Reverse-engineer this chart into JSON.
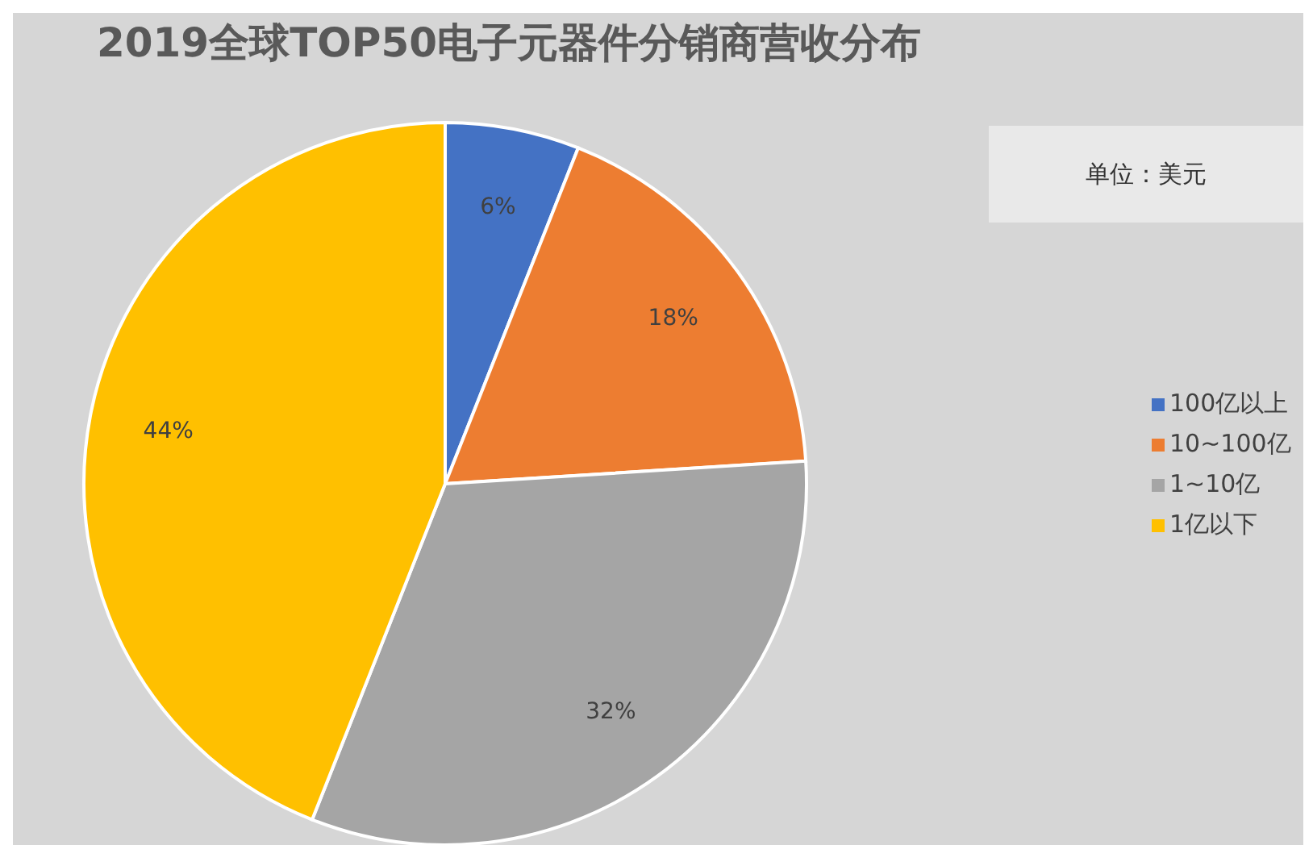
{
  "chart_data": {
    "type": "pie",
    "title": "2019全球TOP50电子元器件分销商营收分布",
    "categories": [
      "100亿以上",
      "10~100亿",
      "1~10亿",
      "1亿以下"
    ],
    "values": [
      6,
      18,
      32,
      44
    ],
    "colors": [
      "#4472c4",
      "#ed7d31",
      "#a5a5a5",
      "#ffc000"
    ],
    "annotations": [
      "单位：美元"
    ],
    "value_labels": [
      "6%",
      "18%",
      "32%",
      "44%"
    ],
    "legend": "right"
  }
}
